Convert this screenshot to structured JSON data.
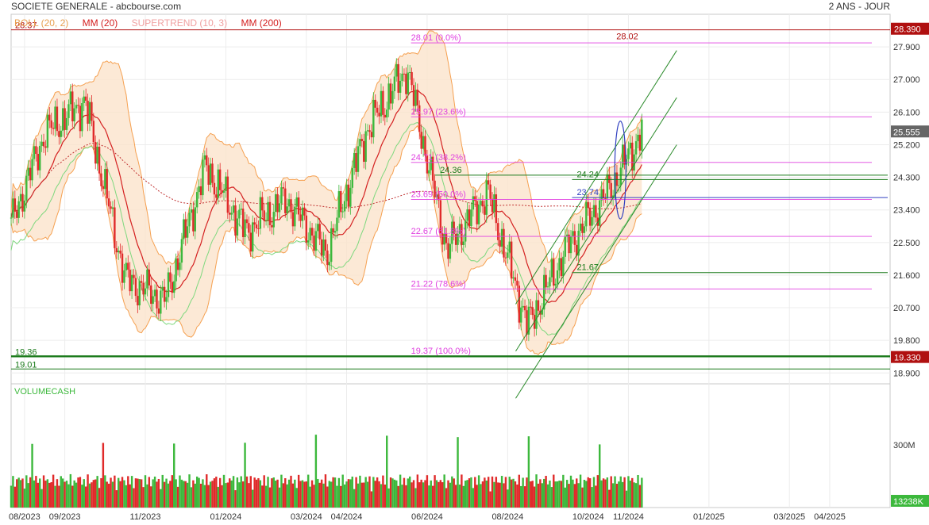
{
  "header": {
    "title": "SOCIETE GENERALE - abcbourse.com",
    "period": "2 ANS - JOUR"
  },
  "legend": [
    {
      "label": "BOLL (20, 2)",
      "color": "#e8a050"
    },
    {
      "label": "MM (20)",
      "color": "#d42020"
    },
    {
      "label": "SUPERTREND (10, 3)",
      "color": "#f0a0a0"
    },
    {
      "label": "MM (200)",
      "color": "#d42020"
    }
  ],
  "volume_label": "VOLUMECASH",
  "colors": {
    "up": "#3cb83c",
    "down": "#e02a2a",
    "boll": "#f5a050",
    "boll_fill": "#fbe3cc",
    "fibo": "#e040e0",
    "support": "#1a7a1a",
    "resistance": "#b01010",
    "channel": "#2a8a2a",
    "ellipse": "#3040c0"
  },
  "chart_data": [
    {
      "type": "candlestick",
      "title": "SOCIETE GENERALE",
      "x_ticks": [
        "08/2023",
        "09/2023",
        "11/2023",
        "01/2024",
        "03/2024",
        "04/2024",
        "06/2024",
        "08/2024",
        "10/2024",
        "11/2024",
        "01/2025",
        "03/2025",
        "04/2025"
      ],
      "y_ticks": [
        18.9,
        19.8,
        20.7,
        21.6,
        22.5,
        23.4,
        24.3,
        25.2,
        26.1,
        27.0,
        27.9
      ],
      "ylim": [
        18.6,
        28.8
      ],
      "last_price": 25.555,
      "price_path_monthly": [
        {
          "x": "07/2023",
          "close": 23.0
        },
        {
          "x": "08/2023",
          "close": 25.5
        },
        {
          "x": "09/2023",
          "close": 26.4
        },
        {
          "x": "10/2023",
          "close": 21.5
        },
        {
          "x": "11/2023",
          "close": 20.9
        },
        {
          "x": "12/2023",
          "close": 24.6
        },
        {
          "x": "01/2024",
          "close": 22.8
        },
        {
          "x": "02/2024",
          "close": 23.7
        },
        {
          "x": "03/2024",
          "close": 22.2
        },
        {
          "x": "04/2024",
          "close": 25.6
        },
        {
          "x": "05/2024",
          "close": 27.3
        },
        {
          "x": "06/2024",
          "close": 22.3
        },
        {
          "x": "07/2024",
          "close": 23.9
        },
        {
          "x": "08/2024",
          "close": 20.2
        },
        {
          "x": "09/2024",
          "close": 22.4
        },
        {
          "x": "10/2024",
          "close": 23.9
        },
        {
          "x": "11/2024",
          "close": 25.55
        }
      ],
      "levels": [
        {
          "label": "28.37",
          "value": 28.37,
          "color": "resistance",
          "side": "left"
        },
        {
          "label": "28.390",
          "value": 28.39,
          "color": "resistance",
          "side": "right_badge"
        },
        {
          "label": "19.36",
          "value": 19.36,
          "color": "support",
          "side": "left"
        },
        {
          "label": "19.01",
          "value": 19.01,
          "color": "support",
          "side": "left"
        },
        {
          "label": "19.330",
          "value": 19.33,
          "color": "resistance",
          "side": "right_badge"
        },
        {
          "label": "24.36",
          "value": 24.36,
          "color": "support",
          "side": "mid"
        },
        {
          "label": "24.24",
          "value": 24.24,
          "color": "support",
          "side": "mid"
        },
        {
          "label": "21.67",
          "value": 21.67,
          "color": "support",
          "side": "mid"
        },
        {
          "label": "23.74",
          "value": 23.74,
          "color": "ellipse",
          "side": "mid"
        },
        {
          "label": "28.02",
          "value": 28.02,
          "color": "resistance",
          "side": "peak"
        }
      ],
      "fibonacci": [
        {
          "label": "28.01  (0.0%)",
          "value": 28.01
        },
        {
          "label": "25.97  (23.6%)",
          "value": 25.97
        },
        {
          "label": "24.71  (38.2%)",
          "value": 24.71
        },
        {
          "label": "23.69  (50.0%)",
          "value": 23.69
        },
        {
          "label": "22.67  (61.8%)",
          "value": 22.67
        },
        {
          "label": "21.22  (78.6%)",
          "value": 21.22
        },
        {
          "label": "19.37  (100.0%)",
          "value": 19.37
        }
      ]
    },
    {
      "type": "bar",
      "title": "VOLUMECASH",
      "y_ticks": [
        "300M"
      ],
      "last_value_label": "13238K",
      "series": [
        {
          "name": "VOLUMECASH",
          "values": []
        }
      ]
    }
  ]
}
